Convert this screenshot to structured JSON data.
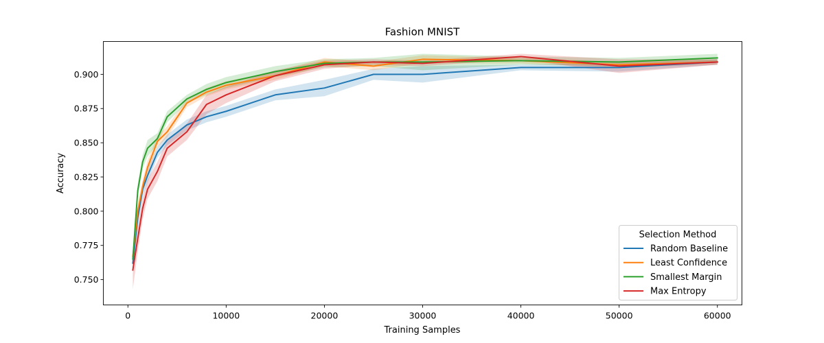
{
  "chart_data": {
    "type": "line",
    "title": "Fashion MNIST",
    "xlabel": "Training Samples",
    "ylabel": "Accuracy",
    "xlim": [
      -2500,
      62500
    ],
    "ylim": [
      0.7315,
      0.924
    ],
    "xticks": [
      0,
      10000,
      20000,
      30000,
      40000,
      50000,
      60000
    ],
    "xtick_labels": [
      "0",
      "10000",
      "20000",
      "30000",
      "40000",
      "50000",
      "60000"
    ],
    "yticks": [
      0.75,
      0.775,
      0.8,
      0.825,
      0.85,
      0.875,
      0.9
    ],
    "ytick_labels": [
      "0.750",
      "0.775",
      "0.800",
      "0.825",
      "0.850",
      "0.875",
      "0.900"
    ],
    "grid": false,
    "legend": {
      "title": "Selection Method",
      "position": "lower-right"
    },
    "x": [
      500,
      1000,
      1500,
      2000,
      3000,
      4000,
      6000,
      8000,
      10000,
      15000,
      20000,
      25000,
      30000,
      40000,
      50000,
      60000
    ],
    "series": [
      {
        "name": "Random Baseline",
        "color": "#1f77b4",
        "values": [
          0.762,
          0.795,
          0.816,
          0.826,
          0.843,
          0.852,
          0.863,
          0.869,
          0.873,
          0.885,
          0.89,
          0.9,
          0.9,
          0.905,
          0.905,
          0.909
        ],
        "band": [
          0.005,
          0.005,
          0.005,
          0.005,
          0.004,
          0.004,
          0.004,
          0.004,
          0.004,
          0.004,
          0.006,
          0.004,
          0.006,
          0.002,
          0.003,
          0.002
        ]
      },
      {
        "name": "Least Confidence",
        "color": "#ff7f0e",
        "values": [
          0.767,
          0.8,
          0.818,
          0.832,
          0.851,
          0.858,
          0.879,
          0.887,
          0.892,
          0.899,
          0.909,
          0.906,
          0.911,
          0.91,
          0.907,
          0.909
        ],
        "band": [
          0.004,
          0.005,
          0.005,
          0.005,
          0.004,
          0.004,
          0.003,
          0.003,
          0.003,
          0.003,
          0.003,
          0.003,
          0.003,
          0.002,
          0.002,
          0.002
        ]
      },
      {
        "name": "Smallest Margin",
        "color": "#2ca02c",
        "values": [
          0.765,
          0.815,
          0.836,
          0.846,
          0.853,
          0.869,
          0.882,
          0.889,
          0.894,
          0.902,
          0.908,
          0.909,
          0.909,
          0.91,
          0.909,
          0.912
        ],
        "band": [
          0.004,
          0.005,
          0.005,
          0.006,
          0.004,
          0.004,
          0.003,
          0.004,
          0.004,
          0.004,
          0.003,
          0.003,
          0.006,
          0.003,
          0.003,
          0.003
        ]
      },
      {
        "name": "Max Entropy",
        "color": "#d62728",
        "values": [
          0.757,
          0.78,
          0.802,
          0.816,
          0.829,
          0.846,
          0.858,
          0.878,
          0.885,
          0.899,
          0.907,
          0.909,
          0.908,
          0.913,
          0.906,
          0.909
        ],
        "band": [
          0.014,
          0.01,
          0.008,
          0.007,
          0.007,
          0.006,
          0.006,
          0.007,
          0.006,
          0.004,
          0.003,
          0.002,
          0.002,
          0.002,
          0.005,
          0.002
        ]
      }
    ]
  }
}
